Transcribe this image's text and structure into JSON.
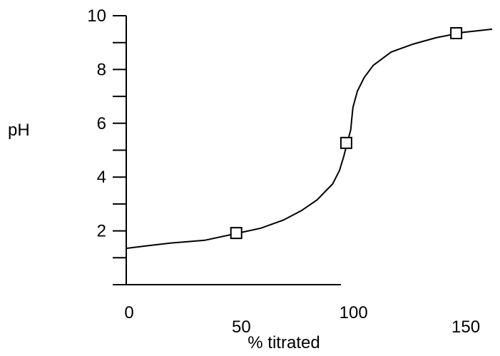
{
  "chart_data": {
    "type": "line",
    "xlabel": "% titrated",
    "ylabel": "pH",
    "xlim": [
      0,
      170
    ],
    "ylim": [
      0,
      10
    ],
    "x_ticks": [
      0,
      50,
      100,
      150
    ],
    "x_tick_labels": [
      "0",
      "50",
      "100",
      "150"
    ],
    "y_ticks": [
      0,
      1,
      2,
      3,
      4,
      5,
      6,
      7,
      8,
      9,
      10
    ],
    "y_tick_labels": [
      "2",
      "4",
      "6",
      "8",
      "10"
    ],
    "y_labeled_ticks": [
      2,
      4,
      6,
      8,
      10
    ],
    "grid": false,
    "series": [
      {
        "x": [
          0,
          10,
          20,
          35,
          50,
          60,
          70,
          78,
          85,
          92,
          95,
          97,
          98.5,
          100,
          100.5,
          101,
          103,
          106,
          110,
          118,
          128,
          138,
          150,
          163
        ],
        "y": [
          1.35,
          1.45,
          1.55,
          1.65,
          1.92,
          2.1,
          2.4,
          2.75,
          3.15,
          3.75,
          4.25,
          4.8,
          5.3,
          5.75,
          6.2,
          6.6,
          7.2,
          7.7,
          8.15,
          8.65,
          8.95,
          9.18,
          9.38,
          9.5
        ]
      }
    ],
    "markers": [
      {
        "x": 49,
        "y": 1.92
      },
      {
        "x": 98,
        "y": 5.27
      },
      {
        "x": 147,
        "y": 9.35
      }
    ],
    "marker_shape": "square",
    "line_color": "#000000"
  }
}
